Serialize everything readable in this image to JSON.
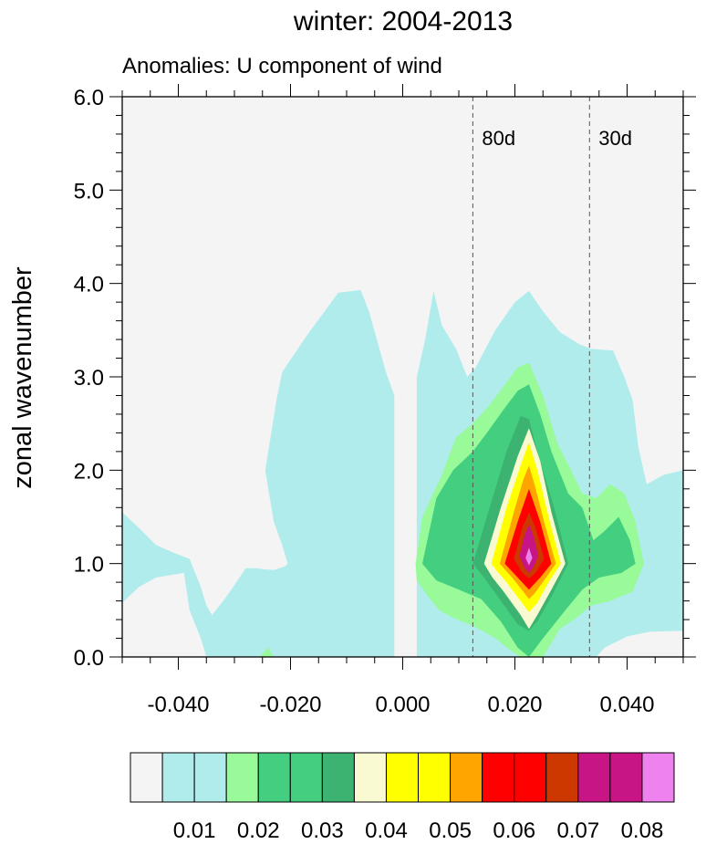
{
  "chart_data": {
    "type": "contour",
    "title": "winter: 2004-2013",
    "subtitle": "Anomalies: U component of wind",
    "xlabel": "",
    "ylabel": "zonal wavenumber",
    "xlim": [
      -0.05,
      0.05
    ],
    "ylim": [
      0.0,
      6.0
    ],
    "x_ticks": [
      -0.04,
      -0.02,
      0.0,
      0.02,
      0.04
    ],
    "x_tick_labels": [
      "-0.040",
      "-0.020",
      "0.000",
      "0.020",
      "0.040"
    ],
    "y_ticks": [
      0,
      1,
      2,
      3,
      4,
      5,
      6
    ],
    "y_tick_labels": [
      "0.0",
      "1.0",
      "2.0",
      "3.0",
      "4.0",
      "5.0",
      "6.0"
    ],
    "reference_lines": [
      {
        "x": 0.0125,
        "label": "80d"
      },
      {
        "x": 0.0333,
        "label": "30d"
      }
    ],
    "colorbar": {
      "colors": [
        "#f4f4f4",
        "#b0ecec",
        "#b0ecec",
        "#98fa98",
        "#44ce80",
        "#44ce80",
        "#3cb371",
        "#fafad2",
        "#ffff00",
        "#ffff00",
        "#ffa500",
        "#ff0000",
        "#ff0000",
        "#cd3700",
        "#c71585",
        "#c71585",
        "#ee82ee"
      ],
      "labels": [
        "0.01",
        "0.02",
        "0.03",
        "0.04",
        "0.05",
        "0.06",
        "0.07",
        "0.08"
      ]
    },
    "contours": [
      {
        "color": "#b0ecec",
        "polygons": [
          [
            [
              -0.05,
              1.55
            ],
            [
              -0.047,
              1.38
            ],
            [
              -0.044,
              1.2
            ],
            [
              -0.041,
              1.12
            ],
            [
              -0.038,
              1.05
            ],
            [
              -0.036,
              0.75
            ],
            [
              -0.035,
              0.55
            ],
            [
              -0.034,
              0.45
            ],
            [
              -0.032,
              0.6
            ],
            [
              -0.03,
              0.77
            ],
            [
              -0.028,
              0.95
            ],
            [
              -0.026,
              0.95
            ],
            [
              -0.025,
              0.94
            ],
            [
              -0.023,
              0.93
            ],
            [
              -0.021,
              0.97
            ],
            [
              -0.0205,
              1.0
            ],
            [
              -0.0215,
              1.2
            ],
            [
              -0.023,
              1.45
            ],
            [
              -0.0245,
              2.0
            ],
            [
              -0.0225,
              2.75
            ],
            [
              -0.0215,
              3.05
            ],
            [
              -0.017,
              3.45
            ],
            [
              -0.0115,
              3.9
            ],
            [
              -0.0075,
              3.93
            ],
            [
              -0.006,
              3.7
            ],
            [
              -0.003,
              3.05
            ],
            [
              -0.0015,
              2.8
            ],
            [
              -0.0015,
              0.0
            ],
            [
              -0.05,
              0.0
            ]
          ],
          [
            [
              0.0025,
              0.0
            ],
            [
              0.0025,
              3.0
            ],
            [
              0.004,
              3.4
            ],
            [
              0.0055,
              3.92
            ],
            [
              0.007,
              3.55
            ],
            [
              0.0095,
              3.3
            ],
            [
              0.0115,
              3.0
            ],
            [
              0.013,
              3.1
            ],
            [
              0.0165,
              3.5
            ],
            [
              0.02,
              3.8
            ],
            [
              0.0225,
              3.92
            ],
            [
              0.025,
              3.7
            ],
            [
              0.028,
              3.48
            ],
            [
              0.0315,
              3.35
            ],
            [
              0.0335,
              3.3
            ],
            [
              0.0375,
              3.28
            ],
            [
              0.0395,
              3.0
            ],
            [
              0.041,
              2.75
            ],
            [
              0.042,
              2.25
            ],
            [
              0.0435,
              1.85
            ],
            [
              0.0465,
              1.95
            ],
            [
              0.05,
              2.0
            ],
            [
              0.05,
              0.0
            ]
          ]
        ]
      },
      {
        "color": "#f4f4f4",
        "polygons": [
          [
            [
              -0.05,
              0.0
            ],
            [
              -0.05,
              0.58
            ],
            [
              -0.047,
              0.75
            ],
            [
              -0.044,
              0.85
            ],
            [
              -0.041,
              0.88
            ],
            [
              -0.039,
              0.9
            ],
            [
              -0.038,
              0.5
            ],
            [
              -0.036,
              0.2
            ],
            [
              -0.035,
              0.0
            ]
          ],
          [
            [
              0.0345,
              0.0
            ],
            [
              0.036,
              0.1
            ],
            [
              0.04,
              0.22
            ],
            [
              0.044,
              0.27
            ],
            [
              0.05,
              0.28
            ],
            [
              0.05,
              0.0
            ]
          ]
        ]
      },
      {
        "color": "#98fa98",
        "polygons": [
          [
            [
              0.0023,
              1.0
            ],
            [
              0.0035,
              1.5
            ],
            [
              0.007,
              1.95
            ],
            [
              0.0095,
              2.35
            ],
            [
              0.0125,
              2.5
            ],
            [
              0.0155,
              2.7
            ],
            [
              0.018,
              2.9
            ],
            [
              0.0205,
              3.1
            ],
            [
              0.0225,
              3.15
            ],
            [
              0.025,
              2.8
            ],
            [
              0.0275,
              2.3
            ],
            [
              0.03,
              2.0
            ],
            [
              0.032,
              1.75
            ],
            [
              0.0345,
              1.7
            ],
            [
              0.037,
              1.85
            ],
            [
              0.0395,
              1.75
            ],
            [
              0.0415,
              1.45
            ],
            [
              0.043,
              1.0
            ],
            [
              0.041,
              0.7
            ],
            [
              0.037,
              0.6
            ],
            [
              0.0335,
              0.55
            ],
            [
              0.031,
              0.42
            ],
            [
              0.028,
              0.3
            ],
            [
              0.025,
              0.0
            ],
            [
              0.021,
              0.0
            ],
            [
              0.019,
              0.08
            ],
            [
              0.0165,
              0.2
            ],
            [
              0.013,
              0.32
            ],
            [
              0.009,
              0.42
            ],
            [
              0.0065,
              0.5
            ],
            [
              0.0045,
              0.65
            ],
            [
              0.0025,
              0.82
            ]
          ],
          [
            [
              -0.0255,
              0.0
            ],
            [
              -0.024,
              0.1
            ],
            [
              -0.023,
              0.0
            ]
          ]
        ]
      },
      {
        "color": "#44ce80",
        "polygons": [
          [
            [
              0.0035,
              1.0
            ],
            [
              0.006,
              1.7
            ],
            [
              0.009,
              2.0
            ],
            [
              0.0125,
              2.2
            ],
            [
              0.015,
              2.4
            ],
            [
              0.018,
              2.65
            ],
            [
              0.0205,
              2.85
            ],
            [
              0.0225,
              2.92
            ],
            [
              0.0245,
              2.6
            ],
            [
              0.0265,
              2.2
            ],
            [
              0.0295,
              1.75
            ],
            [
              0.032,
              1.6
            ],
            [
              0.034,
              1.25
            ],
            [
              0.036,
              1.35
            ],
            [
              0.0385,
              1.5
            ],
            [
              0.0405,
              1.25
            ],
            [
              0.0415,
              1.0
            ],
            [
              0.039,
              0.9
            ],
            [
              0.035,
              0.85
            ],
            [
              0.032,
              0.72
            ],
            [
              0.029,
              0.5
            ],
            [
              0.025,
              0.2
            ],
            [
              0.0225,
              0.0
            ],
            [
              0.0205,
              0.1
            ],
            [
              0.0175,
              0.38
            ],
            [
              0.014,
              0.62
            ],
            [
              0.01,
              0.72
            ],
            [
              0.006,
              0.82
            ]
          ]
        ]
      },
      {
        "color": "#3cb371",
        "polygons": [
          [
            [
              0.0125,
              1.0
            ],
            [
              0.0155,
              1.6
            ],
            [
              0.0185,
              2.2
            ],
            [
              0.021,
              2.58
            ],
            [
              0.0225,
              2.55
            ],
            [
              0.024,
              2.2
            ],
            [
              0.027,
              1.6
            ],
            [
              0.0295,
              1.0
            ],
            [
              0.027,
              0.7
            ],
            [
              0.024,
              0.38
            ],
            [
              0.0225,
              0.28
            ],
            [
              0.0205,
              0.35
            ],
            [
              0.0175,
              0.6
            ],
            [
              0.0145,
              0.85
            ]
          ]
        ]
      },
      {
        "color": "#fafad2",
        "polygons": [
          [
            [
              0.0145,
              1.0
            ],
            [
              0.0175,
              1.6
            ],
            [
              0.0205,
              2.15
            ],
            [
              0.0225,
              2.45
            ],
            [
              0.0245,
              2.1
            ],
            [
              0.0265,
              1.55
            ],
            [
              0.029,
              1.0
            ],
            [
              0.0265,
              0.72
            ],
            [
              0.024,
              0.45
            ],
            [
              0.0225,
              0.3
            ],
            [
              0.021,
              0.45
            ],
            [
              0.018,
              0.7
            ],
            [
              0.016,
              0.85
            ]
          ]
        ]
      },
      {
        "color": "#ffff00",
        "polygons": [
          [
            [
              0.0158,
              1.0
            ],
            [
              0.0185,
              1.6
            ],
            [
              0.021,
              2.05
            ],
            [
              0.0225,
              2.3
            ],
            [
              0.024,
              2.0
            ],
            [
              0.026,
              1.5
            ],
            [
              0.0282,
              1.0
            ],
            [
              0.026,
              0.8
            ],
            [
              0.024,
              0.58
            ],
            [
              0.0225,
              0.48
            ],
            [
              0.021,
              0.6
            ],
            [
              0.0185,
              0.8
            ],
            [
              0.0168,
              0.92
            ]
          ]
        ]
      },
      {
        "color": "#ffa500",
        "polygons": [
          [
            [
              0.0173,
              1.0
            ],
            [
              0.0198,
              1.55
            ],
            [
              0.0215,
              1.9
            ],
            [
              0.0225,
              2.05
            ],
            [
              0.0235,
              1.85
            ],
            [
              0.0252,
              1.45
            ],
            [
              0.0273,
              1.0
            ],
            [
              0.0252,
              0.82
            ],
            [
              0.0235,
              0.68
            ],
            [
              0.0225,
              0.62
            ],
            [
              0.0215,
              0.7
            ],
            [
              0.0195,
              0.85
            ]
          ]
        ]
      },
      {
        "color": "#ff0000",
        "polygons": [
          [
            [
              0.0182,
              1.0
            ],
            [
              0.0205,
              1.45
            ],
            [
              0.0225,
              1.8
            ],
            [
              0.0245,
              1.45
            ],
            [
              0.0265,
              1.0
            ],
            [
              0.0245,
              0.85
            ],
            [
              0.0225,
              0.72
            ],
            [
              0.0205,
              0.85
            ]
          ]
        ]
      },
      {
        "color": "#cd3700",
        "polygons": [
          [
            [
              0.0198,
              1.05
            ],
            [
              0.0213,
              1.38
            ],
            [
              0.0225,
              1.55
            ],
            [
              0.0237,
              1.38
            ],
            [
              0.0252,
              1.05
            ],
            [
              0.0237,
              0.9
            ],
            [
              0.0225,
              0.84
            ],
            [
              0.0213,
              0.9
            ]
          ]
        ]
      },
      {
        "color": "#c71585",
        "polygons": [
          [
            [
              0.0208,
              1.08
            ],
            [
              0.0217,
              1.3
            ],
            [
              0.0225,
              1.42
            ],
            [
              0.0233,
              1.3
            ],
            [
              0.0242,
              1.08
            ],
            [
              0.0233,
              0.96
            ],
            [
              0.0225,
              0.9
            ],
            [
              0.0217,
              0.96
            ]
          ]
        ]
      },
      {
        "color": "#ee82ee",
        "polygons": [
          [
            [
              0.0219,
              1.06
            ],
            [
              0.0225,
              1.17
            ],
            [
              0.0231,
              1.06
            ],
            [
              0.0225,
              0.98
            ]
          ]
        ]
      }
    ]
  }
}
